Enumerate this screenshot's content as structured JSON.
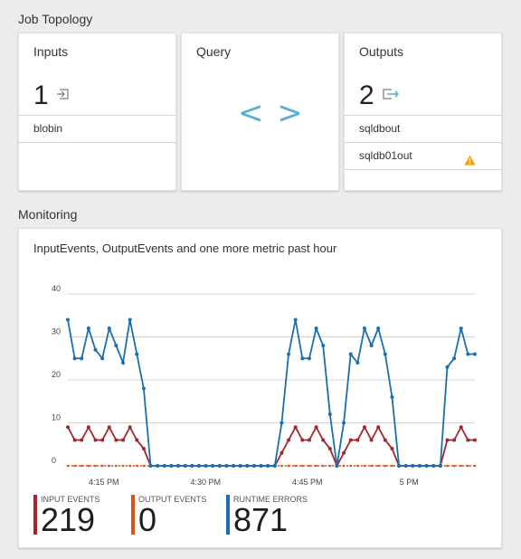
{
  "job_topology": {
    "title": "Job Topology",
    "inputs": {
      "title": "Inputs",
      "count": "1",
      "items": [
        "blobin"
      ]
    },
    "query": {
      "title": "Query",
      "glyph": "< >"
    },
    "outputs": {
      "title": "Outputs",
      "count": "2",
      "items": [
        "sqldbout",
        "sqldb01out"
      ],
      "warning_item": "sqldb01out"
    }
  },
  "monitoring": {
    "title": "Monitoring",
    "chart_title": "InputEvents, OutputEvents and one more metric past hour",
    "legend": [
      {
        "label": "INPUT EVENTS",
        "value": "219",
        "color": "#a4262c"
      },
      {
        "label": "OUTPUT EVENTS",
        "value": "0",
        "color": "#d9531e"
      },
      {
        "label": "RUNTIME ERRORS",
        "value": "871",
        "color": "#1c6faf"
      }
    ]
  },
  "chart_data": {
    "type": "line",
    "title": "InputEvents, OutputEvents and one more metric past hour",
    "xlabel": "",
    "ylabel": "",
    "ylim": [
      0,
      40
    ],
    "y_ticks": [
      "0",
      "10",
      "20",
      "30",
      "40"
    ],
    "x_ticks": [
      "4:15 PM",
      "4:30 PM",
      "4:45 PM",
      "5 PM"
    ],
    "grid": true,
    "legend_position": "bottom",
    "series": [
      {
        "name": "RUNTIME ERRORS",
        "color": "#1c6faf",
        "values": [
          34,
          25,
          25,
          32,
          27,
          25,
          32,
          28,
          24,
          34,
          26,
          18,
          0,
          0,
          0,
          0,
          0,
          0,
          0,
          0,
          0,
          0,
          0,
          0,
          0,
          0,
          0,
          0,
          0,
          0,
          0,
          10,
          26,
          34,
          25,
          25,
          32,
          28,
          12,
          0,
          10,
          26,
          24,
          32,
          28,
          32,
          26,
          16,
          0,
          0,
          0,
          0,
          0,
          0,
          0,
          23,
          25,
          32,
          26,
          26
        ]
      },
      {
        "name": "INPUT EVENTS",
        "color": "#a4262c",
        "values": [
          9,
          6,
          6,
          9,
          6,
          6,
          9,
          6,
          6,
          9,
          6,
          4,
          0,
          0,
          0,
          0,
          0,
          0,
          0,
          0,
          0,
          0,
          0,
          0,
          0,
          0,
          0,
          0,
          0,
          0,
          0,
          3,
          6,
          9,
          6,
          6,
          9,
          6,
          4,
          0,
          3,
          6,
          6,
          9,
          6,
          9,
          6,
          4,
          0,
          0,
          0,
          0,
          0,
          0,
          0,
          6,
          6,
          9,
          6,
          6
        ]
      },
      {
        "name": "OUTPUT EVENTS",
        "color": "#d9531e",
        "values": [
          0,
          0,
          0,
          0,
          0,
          0,
          0,
          0,
          0,
          0,
          0,
          0,
          0,
          0,
          0,
          0,
          0,
          0,
          0,
          0,
          0,
          0,
          0,
          0,
          0,
          0,
          0,
          0,
          0,
          0,
          0,
          0,
          0,
          0,
          0,
          0,
          0,
          0,
          0,
          0,
          0,
          0,
          0,
          0,
          0,
          0,
          0,
          0,
          0,
          0,
          0,
          0,
          0,
          0,
          0,
          0,
          0,
          0,
          0,
          0
        ]
      }
    ]
  }
}
